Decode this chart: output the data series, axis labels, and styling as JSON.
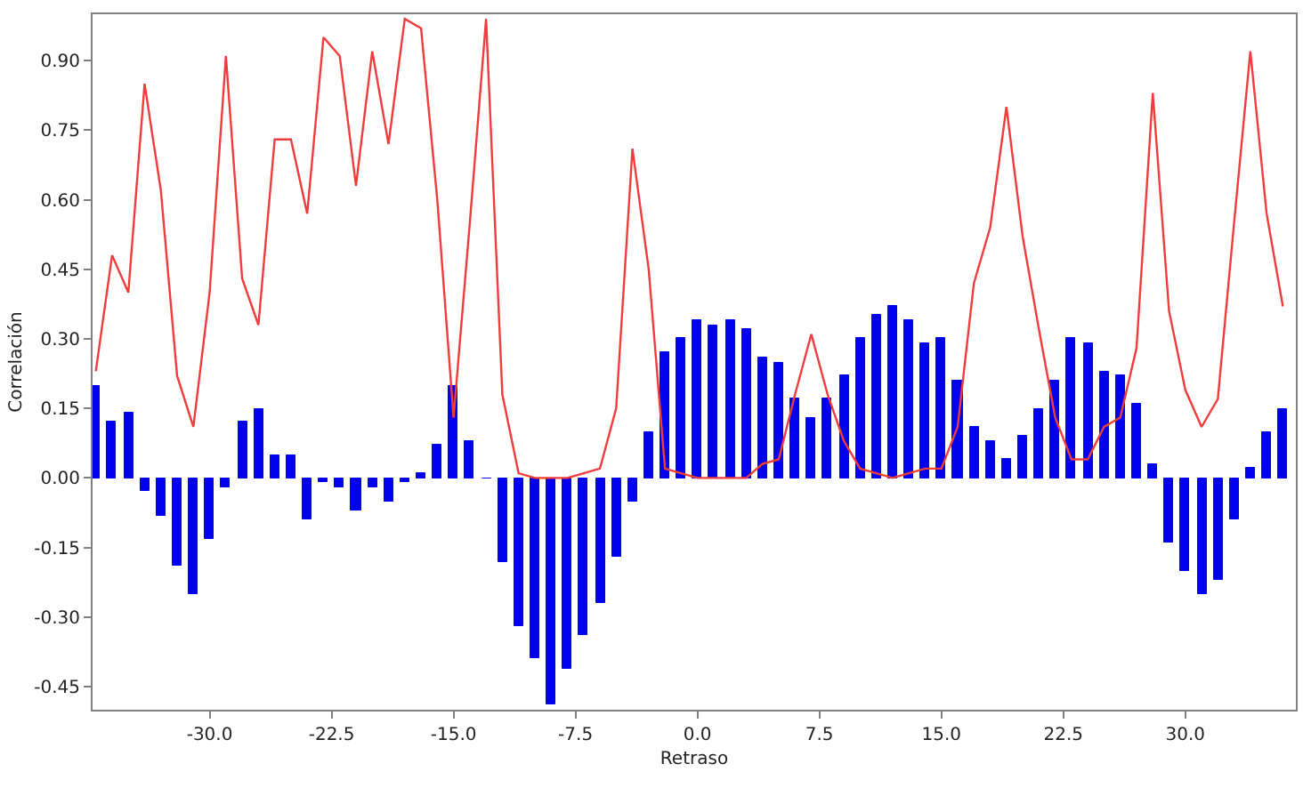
{
  "chart_data": {
    "type": "bar",
    "xlabel": "Retraso",
    "ylabel": "Correlación",
    "x": [
      -37,
      -36,
      -35,
      -34,
      -33,
      -32,
      -31,
      -30,
      -29,
      -28,
      -27,
      -26,
      -25,
      -24,
      -23,
      -22,
      -21,
      -20,
      -19,
      -18,
      -17,
      -16,
      -15,
      -14,
      -13,
      -12,
      -11,
      -10,
      -9,
      -8,
      -7,
      -6,
      -5,
      -4,
      -3,
      -2,
      -1,
      0,
      1,
      2,
      3,
      4,
      5,
      6,
      7,
      8,
      9,
      10,
      11,
      12,
      13,
      14,
      15,
      16,
      17,
      18,
      19,
      20,
      21,
      22,
      23,
      24,
      25,
      26,
      27,
      28,
      29,
      30,
      31,
      32,
      33,
      34,
      35,
      36
    ],
    "series": [
      {
        "color": "#0000ee",
        "values": [
          0.2,
          0.12,
          0.14,
          -0.03,
          -0.08,
          -0.19,
          -0.25,
          -0.13,
          -0.02,
          0.12,
          0.15,
          0.05,
          0.05,
          -0.09,
          -0.01,
          -0.02,
          -0.07,
          -0.02,
          -0.05,
          -0.01,
          0.01,
          0.07,
          0.2,
          0.08,
          0.0,
          -0.18,
          -0.32,
          -0.39,
          -0.49,
          -0.41,
          -0.34,
          -0.27,
          -0.17,
          -0.05,
          0.1,
          0.27,
          0.3,
          0.34,
          0.33,
          0.34,
          0.32,
          0.26,
          0.25,
          0.17,
          0.13,
          0.17,
          0.22,
          0.3,
          0.35,
          0.37,
          0.34,
          0.29,
          0.3,
          0.21,
          0.11,
          0.08,
          0.04,
          0.09,
          0.15,
          0.21,
          0.3,
          0.29,
          0.23,
          0.22,
          0.16,
          0.03,
          -0.14,
          -0.2,
          -0.25,
          -0.22,
          -0.09,
          0.02,
          0.1,
          0.15
        ]
      },
      {
        "type": "line",
        "color": "#f03c3c",
        "values": [
          0.23,
          0.48,
          0.4,
          0.85,
          0.62,
          0.22,
          0.11,
          0.4,
          0.91,
          0.43,
          0.33,
          0.73,
          0.73,
          0.57,
          0.95,
          0.91,
          0.63,
          0.92,
          0.72,
          0.99,
          0.97,
          0.6,
          0.13,
          0.55,
          0.99,
          0.18,
          0.01,
          0.0,
          0.0,
          0.0,
          0.01,
          0.02,
          0.15,
          0.71,
          0.45,
          0.02,
          0.01,
          0.0,
          0.0,
          0.0,
          0.0,
          0.03,
          0.04,
          0.18,
          0.31,
          0.18,
          0.08,
          0.02,
          0.01,
          0.0,
          0.01,
          0.02,
          0.02,
          0.11,
          0.42,
          0.54,
          0.8,
          0.52,
          0.32,
          0.13,
          0.04,
          0.04,
          0.11,
          0.13,
          0.28,
          0.83,
          0.36,
          0.19,
          0.11,
          0.17,
          0.55,
          0.92,
          0.57,
          0.37
        ]
      }
    ],
    "xlim": [
      -37.2,
      36.8
    ],
    "xticks": [
      {
        "value": -30,
        "label": "-30.0"
      },
      {
        "value": -22.5,
        "label": "-22.5"
      },
      {
        "value": -15,
        "label": "-15.0"
      },
      {
        "value": -7.5,
        "label": "-7.5"
      },
      {
        "value": 0,
        "label": "0.0"
      },
      {
        "value": 7.5,
        "label": "7.5"
      },
      {
        "value": 15,
        "label": "15.0"
      },
      {
        "value": 22.5,
        "label": "22.5"
      },
      {
        "value": 30,
        "label": "30.0"
      }
    ],
    "ylim": [
      -0.5,
      1.0
    ],
    "yticks": [
      {
        "value": -0.45,
        "label": "-0.45"
      },
      {
        "value": -0.3,
        "label": "-0.30"
      },
      {
        "value": -0.15,
        "label": "-0.15"
      },
      {
        "value": 0,
        "label": "0.00"
      },
      {
        "value": 0.15,
        "label": "0.15"
      },
      {
        "value": 0.3,
        "label": "0.30"
      },
      {
        "value": 0.45,
        "label": "0.45"
      },
      {
        "value": 0.6,
        "label": "0.60"
      },
      {
        "value": 0.75,
        "label": "0.75"
      },
      {
        "value": 0.9,
        "label": "0.90"
      }
    ],
    "line_style": "solid"
  }
}
